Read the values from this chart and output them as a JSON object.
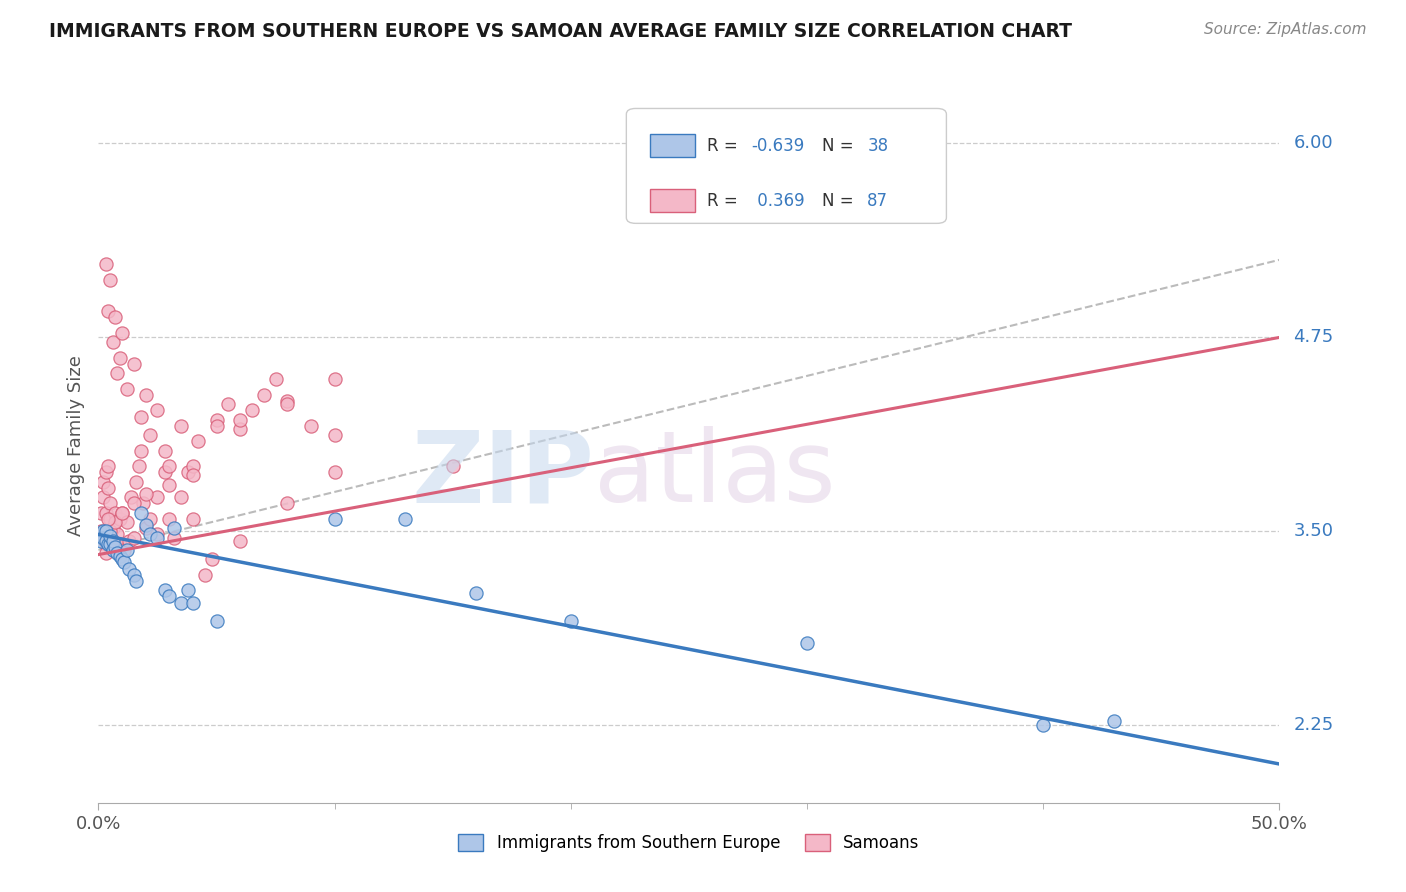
{
  "title": "IMMIGRANTS FROM SOUTHERN EUROPE VS SAMOAN AVERAGE FAMILY SIZE CORRELATION CHART",
  "source": "Source: ZipAtlas.com",
  "ylabel": "Average Family Size",
  "xlim": [
    0.0,
    0.5
  ],
  "ylim": [
    1.75,
    6.35
  ],
  "yticks": [
    2.25,
    3.5,
    4.75,
    6.0
  ],
  "xticks": [
    0.0,
    0.5
  ],
  "xticklabels": [
    "0.0%",
    "50.0%"
  ],
  "blue_color": "#3a7abf",
  "pink_color": "#d9607a",
  "blue_scatter_color": "#aec6e8",
  "pink_scatter_color": "#f4b8c8",
  "legend_r1": "R = -0.639",
  "legend_n1": "N = 38",
  "legend_r2": "R =  0.369",
  "legend_n2": "N = 87",
  "blue_points_x": [
    0.001,
    0.001,
    0.002,
    0.002,
    0.003,
    0.003,
    0.004,
    0.005,
    0.005,
    0.006,
    0.006,
    0.007,
    0.008,
    0.009,
    0.01,
    0.011,
    0.012,
    0.013,
    0.015,
    0.016,
    0.018,
    0.02,
    0.022,
    0.025,
    0.028,
    0.03,
    0.032,
    0.035,
    0.038,
    0.04,
    0.05,
    0.1,
    0.13,
    0.16,
    0.2,
    0.3,
    0.4,
    0.43
  ],
  "blue_points_y": [
    3.48,
    3.44,
    3.5,
    3.46,
    3.5,
    3.44,
    3.42,
    3.42,
    3.47,
    3.38,
    3.44,
    3.4,
    3.36,
    3.34,
    3.32,
    3.3,
    3.38,
    3.26,
    3.22,
    3.18,
    3.62,
    3.54,
    3.48,
    3.46,
    3.12,
    3.08,
    3.52,
    3.04,
    3.12,
    3.04,
    2.92,
    3.58,
    3.58,
    3.1,
    2.92,
    2.78,
    2.25,
    2.28
  ],
  "pink_points_x": [
    0.001,
    0.001,
    0.002,
    0.002,
    0.003,
    0.003,
    0.004,
    0.004,
    0.005,
    0.005,
    0.005,
    0.006,
    0.006,
    0.007,
    0.007,
    0.008,
    0.009,
    0.009,
    0.01,
    0.011,
    0.012,
    0.013,
    0.014,
    0.015,
    0.016,
    0.017,
    0.018,
    0.019,
    0.02,
    0.022,
    0.025,
    0.025,
    0.028,
    0.03,
    0.032,
    0.035,
    0.038,
    0.04,
    0.042,
    0.045,
    0.048,
    0.05,
    0.055,
    0.06,
    0.065,
    0.07,
    0.075,
    0.08,
    0.09,
    0.1,
    0.003,
    0.004,
    0.005,
    0.006,
    0.007,
    0.008,
    0.009,
    0.01,
    0.012,
    0.015,
    0.018,
    0.02,
    0.022,
    0.025,
    0.028,
    0.03,
    0.035,
    0.04,
    0.05,
    0.06,
    0.08,
    0.1,
    0.003,
    0.005,
    0.007,
    0.01,
    0.015,
    0.02,
    0.03,
    0.04,
    0.06,
    0.08,
    0.1,
    0.15,
    0.003,
    0.002,
    0.004
  ],
  "pink_points_y": [
    3.5,
    3.62,
    3.82,
    3.72,
    3.88,
    3.62,
    3.92,
    3.78,
    3.58,
    3.68,
    3.48,
    3.52,
    3.38,
    3.42,
    3.62,
    3.48,
    3.58,
    3.42,
    3.62,
    3.38,
    3.56,
    3.44,
    3.72,
    3.46,
    3.82,
    3.92,
    4.02,
    3.68,
    3.52,
    3.58,
    3.48,
    3.72,
    3.88,
    3.58,
    3.46,
    3.72,
    3.88,
    3.58,
    4.08,
    3.22,
    3.32,
    4.22,
    4.32,
    4.16,
    4.28,
    4.38,
    4.48,
    4.34,
    4.18,
    4.48,
    5.22,
    4.92,
    5.12,
    4.72,
    4.88,
    4.52,
    4.62,
    4.78,
    4.42,
    4.58,
    4.24,
    4.38,
    4.12,
    4.28,
    4.02,
    3.92,
    4.18,
    3.92,
    4.18,
    4.22,
    4.32,
    4.12,
    3.42,
    3.5,
    3.56,
    3.62,
    3.68,
    3.74,
    3.8,
    3.86,
    3.44,
    3.68,
    3.88,
    3.92,
    3.36,
    3.48,
    3.58
  ],
  "gray_line_x": [
    0.0,
    0.5
  ],
  "gray_line_y": [
    3.38,
    5.25
  ]
}
